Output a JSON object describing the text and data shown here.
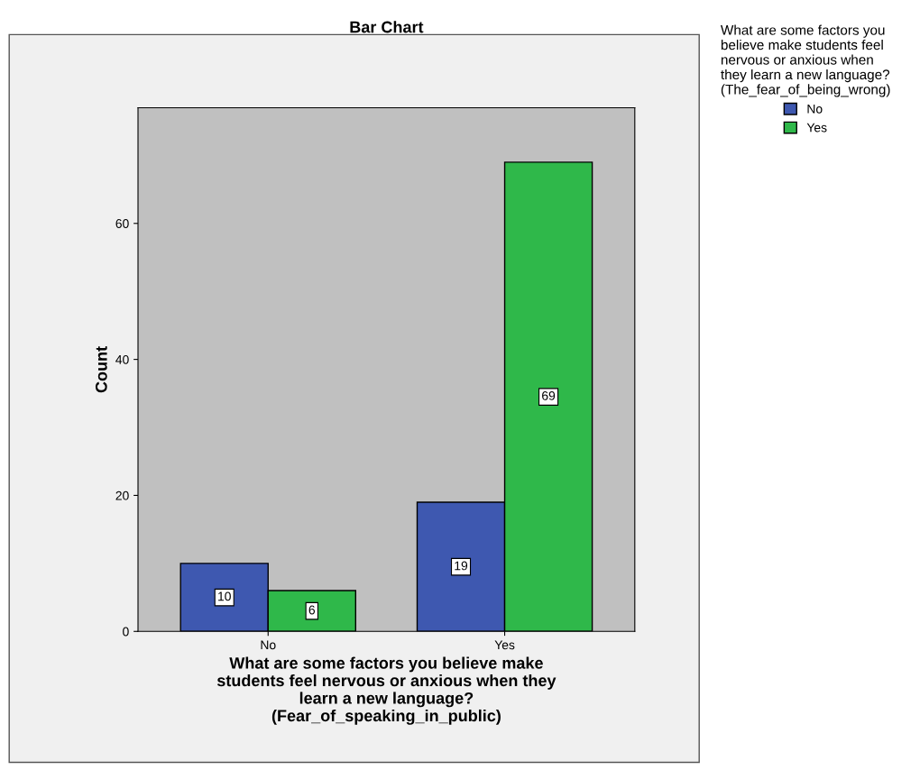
{
  "chart_data": {
    "type": "bar",
    "title": "Bar Chart",
    "xlabel": "What are some factors you believe make\nstudents feel nervous or anxious when they\nlearn a new language?\n(Fear_of_speaking_in_public)",
    "ylabel": "Count",
    "legend_title": "What are some factors you\nbelieve make students feel\nnervous or anxious when\nthey learn a new language?\n(The_fear_of_being_wrong)",
    "categories": [
      "No",
      "Yes"
    ],
    "series": [
      {
        "name": "No",
        "color": "#3e58b0",
        "values": [
          10,
          19
        ]
      },
      {
        "name": "Yes",
        "color": "#2fb84a",
        "values": [
          6,
          69
        ]
      }
    ],
    "ylim": [
      0,
      77
    ],
    "yticks": [
      0,
      20,
      40,
      60
    ],
    "data_labels": true,
    "legend": "top right",
    "grid": false
  }
}
